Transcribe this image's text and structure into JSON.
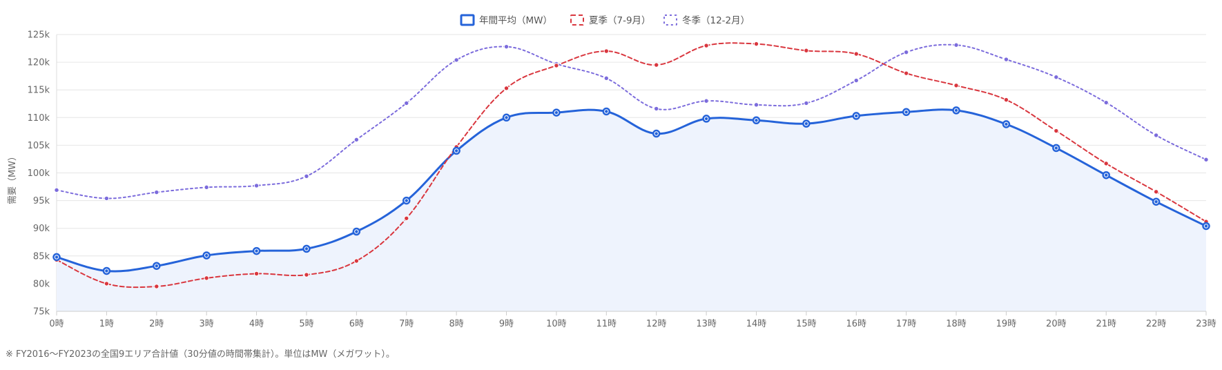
{
  "chart_data": {
    "type": "line",
    "categories": [
      "0時",
      "1時",
      "2時",
      "3時",
      "4時",
      "5時",
      "6時",
      "7時",
      "8時",
      "9時",
      "10時",
      "11時",
      "12時",
      "13時",
      "14時",
      "15時",
      "16時",
      "17時",
      "18時",
      "19時",
      "20時",
      "21時",
      "22時",
      "23時"
    ],
    "ylabel": "需要（MW）",
    "ylim": [
      75000,
      125000
    ],
    "yticks": [
      75000,
      80000,
      85000,
      90000,
      95000,
      100000,
      105000,
      110000,
      115000,
      120000,
      125000
    ],
    "ytick_labels": [
      "75k",
      "80k",
      "85k",
      "90k",
      "95k",
      "100k",
      "105k",
      "110k",
      "115k",
      "120k",
      "125k"
    ],
    "grid": true,
    "legend_position": "top-center",
    "series": [
      {
        "name": "年間平均（MW）",
        "style": "solid",
        "fill": true,
        "color": "#2563d9",
        "fill_color": "#eef3fd",
        "values": [
          84800,
          82300,
          83200,
          85100,
          85900,
          86300,
          89400,
          95000,
          104000,
          110000,
          110900,
          111100,
          107100,
          109800,
          109500,
          108900,
          110300,
          111000,
          111300,
          108800,
          104500,
          99600,
          94800,
          90400
        ]
      },
      {
        "name": "夏季（7-9月）",
        "style": "dashed",
        "fill": false,
        "color": "#d9363e",
        "values": [
          84300,
          80000,
          79500,
          81000,
          81800,
          81600,
          84100,
          91800,
          104700,
          115300,
          119400,
          122000,
          119500,
          123000,
          123300,
          122100,
          121500,
          118000,
          115800,
          113200,
          107600,
          101700,
          96600,
          91200
        ]
      },
      {
        "name": "冬季（12-2月）",
        "style": "dotted",
        "fill": false,
        "color": "#7b6bdc",
        "values": [
          96900,
          95400,
          96500,
          97400,
          97700,
          99400,
          106000,
          112600,
          120400,
          122800,
          119700,
          117100,
          111600,
          113000,
          112300,
          112600,
          116700,
          121800,
          123100,
          120500,
          117300,
          112700,
          106800,
          102400
        ]
      }
    ]
  },
  "footnote": "※ FY2016～FY2023の全国9エリア合計値（30分値の時間帯集計）。単位はMW（メガワット）。"
}
